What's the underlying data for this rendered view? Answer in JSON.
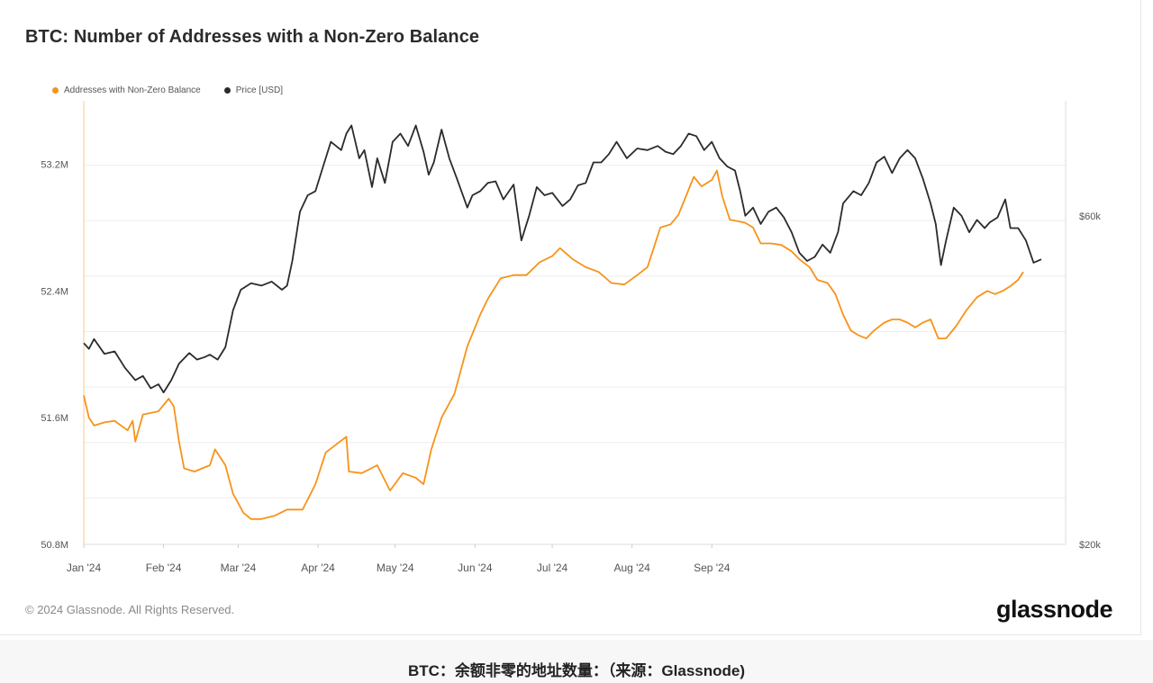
{
  "title": "BTC: Number of Addresses with a Non-Zero Balance",
  "legend": {
    "addresses": "Addresses with Non-Zero Balance",
    "price": "Price [USD]"
  },
  "colors": {
    "addresses": "#f7931a",
    "price": "#2b2b2b",
    "grid": "#eeeeee"
  },
  "chart_data": {
    "type": "line",
    "title": "BTC: Number of Addresses with a Non-Zero Balance",
    "x_ticks": [
      "Jan '24",
      "Feb '24",
      "Mar '24",
      "Apr '24",
      "May '24",
      "Jun '24",
      "Jul '24",
      "Aug '24",
      "Sep '24"
    ],
    "y_left_ticks": [
      "53.2M",
      "52.4M",
      "51.6M",
      "50.8M"
    ],
    "y_right_ticks": [
      "$60k",
      "$20k"
    ],
    "y_left_range": [
      50.8,
      53.6
    ],
    "y_right_range": [
      20000,
      74000
    ],
    "y_left_unit": "M addresses",
    "series": [
      {
        "name": "Addresses with Non-Zero Balance",
        "axis": "left",
        "points": [
          [
            1,
            51.74
          ],
          [
            3,
            51.6
          ],
          [
            5,
            51.55
          ],
          [
            9,
            51.57
          ],
          [
            13,
            51.58
          ],
          [
            18,
            51.52
          ],
          [
            20,
            51.58
          ],
          [
            21,
            51.45
          ],
          [
            24,
            51.62
          ],
          [
            30,
            51.64
          ],
          [
            34,
            51.72
          ],
          [
            36,
            51.67
          ],
          [
            38,
            51.45
          ],
          [
            40,
            51.28
          ],
          [
            44,
            51.26
          ],
          [
            47,
            51.28
          ],
          [
            50,
            51.3
          ],
          [
            52,
            51.4
          ],
          [
            56,
            51.3
          ],
          [
            59,
            51.12
          ],
          [
            63,
            51.0
          ],
          [
            66,
            50.96
          ],
          [
            70,
            50.96
          ],
          [
            75,
            50.98
          ],
          [
            80,
            51.02
          ],
          [
            86,
            51.02
          ],
          [
            91,
            51.18
          ],
          [
            95,
            51.38
          ],
          [
            99,
            51.43
          ],
          [
            103,
            51.48
          ],
          [
            104,
            51.26
          ],
          [
            109,
            51.25
          ],
          [
            115,
            51.3
          ],
          [
            120,
            51.14
          ],
          [
            125,
            51.25
          ],
          [
            130,
            51.22
          ],
          [
            133,
            51.18
          ],
          [
            136,
            51.4
          ],
          [
            140,
            51.6
          ],
          [
            145,
            51.75
          ],
          [
            150,
            52.05
          ],
          [
            155,
            52.25
          ],
          [
            158,
            52.35
          ],
          [
            163,
            52.48
          ],
          [
            168,
            52.5
          ],
          [
            173,
            52.5
          ],
          [
            178,
            52.58
          ],
          [
            183,
            52.62
          ],
          [
            186,
            52.67
          ],
          [
            191,
            52.6
          ],
          [
            196,
            52.55
          ],
          [
            201,
            52.52
          ],
          [
            206,
            52.45
          ],
          [
            211,
            52.44
          ],
          [
            216,
            52.5
          ],
          [
            220,
            52.55
          ],
          [
            225,
            52.8
          ],
          [
            229,
            52.82
          ],
          [
            232,
            52.88
          ],
          [
            235,
            53.0
          ],
          [
            238,
            53.12
          ],
          [
            241,
            53.06
          ],
          [
            245,
            53.1
          ],
          [
            247,
            53.16
          ],
          [
            249,
            53.0
          ],
          [
            252,
            52.85
          ],
          [
            255,
            52.84
          ],
          [
            258,
            52.83
          ],
          [
            261,
            52.8
          ],
          [
            264,
            52.7
          ],
          [
            268,
            52.7
          ],
          [
            272,
            52.69
          ],
          [
            276,
            52.65
          ],
          [
            279,
            52.6
          ],
          [
            283,
            52.55
          ],
          [
            286,
            52.47
          ],
          [
            290,
            52.45
          ],
          [
            293,
            52.38
          ],
          [
            296,
            52.25
          ],
          [
            299,
            52.15
          ],
          [
            302,
            52.12
          ],
          [
            305,
            52.1
          ],
          [
            308,
            52.15
          ],
          [
            312,
            52.2
          ],
          [
            315,
            52.22
          ],
          [
            318,
            52.22
          ],
          [
            321,
            52.2
          ],
          [
            324,
            52.17
          ],
          [
            327,
            52.2
          ],
          [
            330,
            52.22
          ],
          [
            333,
            52.1
          ],
          [
            336,
            52.1
          ],
          [
            340,
            52.18
          ],
          [
            344,
            52.28
          ],
          [
            348,
            52.36
          ],
          [
            352,
            52.4
          ],
          [
            355,
            52.38
          ],
          [
            358,
            52.4
          ],
          [
            361,
            52.43
          ],
          [
            364,
            52.47
          ],
          [
            366,
            52.52
          ]
        ]
      },
      {
        "name": "Price [USD]",
        "axis": "right",
        "points": [
          [
            1,
            44500
          ],
          [
            3,
            43800
          ],
          [
            5,
            45000
          ],
          [
            9,
            43200
          ],
          [
            13,
            43500
          ],
          [
            17,
            41500
          ],
          [
            21,
            40000
          ],
          [
            24,
            40500
          ],
          [
            27,
            39000
          ],
          [
            30,
            39500
          ],
          [
            32,
            38500
          ],
          [
            35,
            40000
          ],
          [
            38,
            42000
          ],
          [
            42,
            43300
          ],
          [
            45,
            42500
          ],
          [
            48,
            42800
          ],
          [
            50,
            43100
          ],
          [
            53,
            42500
          ],
          [
            56,
            44000
          ],
          [
            59,
            48500
          ],
          [
            62,
            51000
          ],
          [
            66,
            51800
          ],
          [
            70,
            51500
          ],
          [
            74,
            52000
          ],
          [
            78,
            51000
          ],
          [
            80,
            51500
          ],
          [
            82,
            54500
          ],
          [
            85,
            60500
          ],
          [
            88,
            62500
          ],
          [
            91,
            63000
          ],
          [
            94,
            66000
          ],
          [
            97,
            69000
          ],
          [
            101,
            68000
          ],
          [
            103,
            70000
          ],
          [
            105,
            71000
          ],
          [
            108,
            67000
          ],
          [
            110,
            68000
          ],
          [
            113,
            63500
          ],
          [
            115,
            67000
          ],
          [
            118,
            64000
          ],
          [
            121,
            69000
          ],
          [
            124,
            70000
          ],
          [
            127,
            68500
          ],
          [
            130,
            71000
          ],
          [
            133,
            67800
          ],
          [
            135,
            65000
          ],
          [
            137,
            66500
          ],
          [
            140,
            70500
          ],
          [
            143,
            67000
          ],
          [
            146,
            64500
          ],
          [
            150,
            61000
          ],
          [
            152,
            62500
          ],
          [
            155,
            63000
          ],
          [
            158,
            64000
          ],
          [
            161,
            64200
          ],
          [
            164,
            62000
          ],
          [
            168,
            63800
          ],
          [
            171,
            57000
          ],
          [
            174,
            60000
          ],
          [
            177,
            63500
          ],
          [
            180,
            62500
          ],
          [
            183,
            62800
          ],
          [
            187,
            61200
          ],
          [
            190,
            62000
          ],
          [
            193,
            63700
          ],
          [
            196,
            64000
          ],
          [
            199,
            66500
          ],
          [
            202,
            66500
          ],
          [
            205,
            67500
          ],
          [
            208,
            69000
          ],
          [
            212,
            67000
          ],
          [
            216,
            68200
          ],
          [
            220,
            68000
          ],
          [
            224,
            68500
          ],
          [
            227,
            67800
          ],
          [
            230,
            67500
          ],
          [
            233,
            68500
          ],
          [
            236,
            70000
          ],
          [
            239,
            69700
          ],
          [
            242,
            68000
          ],
          [
            245,
            69000
          ],
          [
            248,
            67000
          ],
          [
            251,
            66000
          ],
          [
            254,
            65500
          ],
          [
            256,
            63000
          ],
          [
            258,
            60000
          ],
          [
            261,
            61000
          ],
          [
            264,
            59000
          ],
          [
            267,
            60500
          ],
          [
            270,
            61000
          ],
          [
            273,
            59800
          ],
          [
            276,
            58000
          ],
          [
            279,
            55500
          ],
          [
            282,
            54500
          ],
          [
            285,
            55000
          ],
          [
            288,
            56500
          ],
          [
            291,
            55500
          ],
          [
            294,
            58000
          ],
          [
            296,
            61500
          ],
          [
            300,
            63000
          ],
          [
            303,
            62500
          ],
          [
            306,
            64000
          ],
          [
            309,
            66500
          ],
          [
            312,
            67200
          ],
          [
            315,
            65200
          ],
          [
            318,
            67000
          ],
          [
            321,
            68000
          ],
          [
            324,
            67000
          ],
          [
            327,
            64500
          ],
          [
            330,
            61500
          ],
          [
            332,
            59000
          ],
          [
            334,
            54000
          ],
          [
            336,
            57000
          ],
          [
            339,
            61000
          ],
          [
            342,
            60000
          ],
          [
            345,
            58000
          ],
          [
            348,
            59500
          ],
          [
            351,
            58500
          ],
          [
            353,
            59200
          ],
          [
            356,
            59800
          ],
          [
            359,
            62000
          ],
          [
            361,
            58500
          ],
          [
            364,
            58500
          ],
          [
            367,
            57000
          ],
          [
            370,
            54300
          ],
          [
            373,
            54700
          ]
        ]
      }
    ]
  },
  "footer": {
    "copyright": "© 2024 Glassnode. All Rights Reserved.",
    "brand": "glassnode"
  },
  "caption": "BTC：余额非零的地址数量：（来源：Glassnode)"
}
